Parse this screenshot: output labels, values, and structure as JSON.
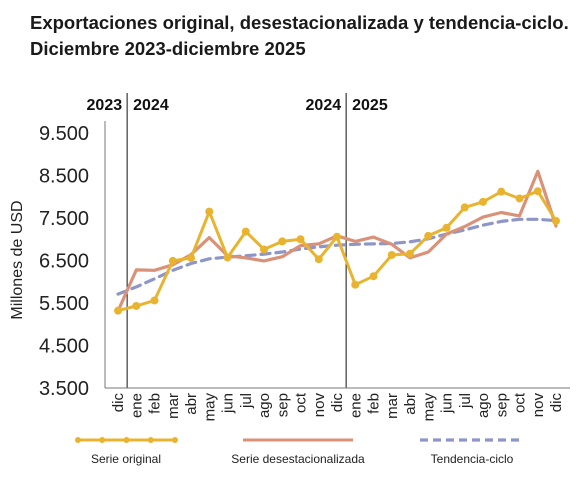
{
  "chart_data": {
    "type": "line",
    "title": "Exportaciones original, desestacionalizada y tendencia-ciclo. Diciembre 2023-diciembre 2025",
    "ylabel": "Millones de USD",
    "xlabel": "",
    "ylim": [
      3500,
      9500
    ],
    "yticks": [
      "9.500",
      "8.500",
      "7.500",
      "6.500",
      "5.500",
      "4.500",
      "3.500"
    ],
    "ytick_values": [
      9500,
      8500,
      7500,
      6500,
      5500,
      4500,
      3500
    ],
    "categories": [
      "dic",
      "ene",
      "feb",
      "mar",
      "abr",
      "may",
      "jun",
      "jul",
      "ago",
      "sep",
      "oct",
      "nov",
      "dic",
      "ene",
      "feb",
      "mar",
      "abr",
      "may",
      "jun",
      "jul",
      "ago",
      "sep",
      "oct",
      "nov",
      "dic"
    ],
    "year_markers": [
      {
        "left": "2023",
        "right": "2024",
        "between": [
          0,
          1
        ]
      },
      {
        "left": "2024",
        "right": "2025",
        "between": [
          12,
          13
        ]
      }
    ],
    "grid": false,
    "legend_position": "bottom",
    "series": [
      {
        "name": "Serie original",
        "color": "#e8b430",
        "style": "solid-markers",
        "values": [
          5320,
          5430,
          5560,
          6490,
          6560,
          7650,
          6570,
          7180,
          6760,
          6950,
          7000,
          6530,
          7060,
          5930,
          6130,
          6630,
          6660,
          7080,
          7270,
          7750,
          7880,
          8120,
          7960,
          8130,
          7430
        ]
      },
      {
        "name": "Serie desestacionalizada",
        "color": "#d99178",
        "style": "solid",
        "values": [
          5310,
          6280,
          6270,
          6400,
          6640,
          7040,
          6610,
          6560,
          6490,
          6590,
          6850,
          6890,
          7080,
          6950,
          7050,
          6880,
          6560,
          6700,
          7120,
          7300,
          7520,
          7630,
          7550,
          8600,
          7310
        ]
      },
      {
        "name": "Tendencia-ciclo",
        "color": "#8e95c9",
        "style": "dashed",
        "values": [
          5710,
          5880,
          6070,
          6270,
          6430,
          6540,
          6580,
          6610,
          6650,
          6700,
          6770,
          6820,
          6860,
          6880,
          6890,
          6900,
          6940,
          7010,
          7120,
          7220,
          7330,
          7420,
          7470,
          7470,
          7440
        ]
      }
    ]
  }
}
